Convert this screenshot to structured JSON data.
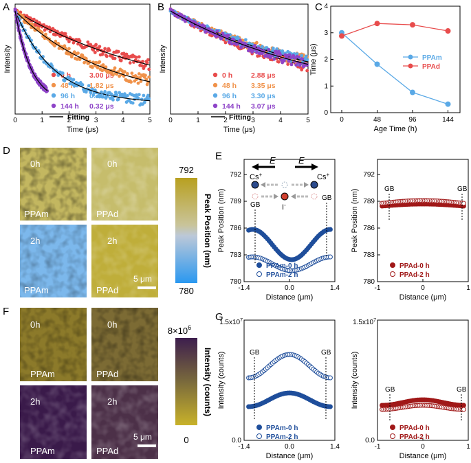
{
  "colors": {
    "red": "#e84c4c",
    "orange": "#f0924a",
    "blue": "#5aa9e6",
    "purple": "#8e44c8",
    "navy": "#1f4e9b",
    "darkred": "#a01818"
  },
  "panels": {
    "A": "A",
    "B": "B",
    "C": "C",
    "D": "D",
    "E": "E",
    "F": "F",
    "G": "G"
  },
  "chart_data": [
    {
      "id": "A",
      "type": "scatter",
      "xlabel": "Time (μs)",
      "ylabel": "Intensity",
      "xlim": [
        0,
        5
      ],
      "xticks": [
        "0",
        "1",
        "2",
        "3",
        "4",
        "5"
      ],
      "series": [
        {
          "name": "0 h",
          "lifetime": "3.00 μs",
          "color": "#e84c4c",
          "tau": 3.0
        },
        {
          "name": "48 h",
          "lifetime": "1.82 μs",
          "color": "#f0924a",
          "tau": 1.82
        },
        {
          "name": "96 h",
          "lifetime": "0.76 μs",
          "color": "#5aa9e6",
          "tau": 0.76
        },
        {
          "name": "144 h",
          "lifetime": "0.32 μs",
          "color": "#8e44c8",
          "tau": 0.32
        }
      ],
      "fit_label": "Fitting"
    },
    {
      "id": "B",
      "type": "scatter",
      "xlabel": "Time (μs)",
      "ylabel": "Intensity",
      "xlim": [
        0,
        5
      ],
      "xticks": [
        "0",
        "1",
        "2",
        "3",
        "4",
        "5"
      ],
      "series": [
        {
          "name": "0 h",
          "lifetime": "2.88 μs",
          "color": "#e84c4c",
          "tau": 2.88
        },
        {
          "name": "48 h",
          "lifetime": "3.35 μs",
          "color": "#f0924a",
          "tau": 3.35
        },
        {
          "name": "96 h",
          "lifetime": "3.30 μs",
          "color": "#5aa9e6",
          "tau": 3.3
        },
        {
          "name": "144 h",
          "lifetime": "3.07 μs",
          "color": "#8e44c8",
          "tau": 3.07
        }
      ],
      "fit_label": "Fitting"
    },
    {
      "id": "C",
      "type": "line",
      "xlabel": "Age Time (h)",
      "ylabel": "Time (μs)",
      "ylim": [
        0,
        4
      ],
      "categories": [
        "0",
        "48",
        "96",
        "144"
      ],
      "yticks": [
        "0",
        "1",
        "2",
        "3",
        "4"
      ],
      "series": [
        {
          "name": "PPAm",
          "color": "#5aa9e6",
          "values": [
            3.0,
            1.82,
            0.76,
            0.32
          ]
        },
        {
          "name": "PPAd",
          "color": "#e84c4c",
          "values": [
            2.88,
            3.35,
            3.3,
            3.07
          ]
        }
      ]
    },
    {
      "id": "E-left",
      "type": "scatter",
      "xlabel": "Distance (μm)",
      "ylabel": "Peak Position (nm)",
      "xlim": [
        -1.4,
        1.4
      ],
      "ylim": [
        780,
        792
      ],
      "xticks": [
        "-1.4",
        "0.0",
        "1.4"
      ],
      "yticks": [
        "780",
        "783",
        "786",
        "789",
        "792"
      ],
      "gb_label": "GB",
      "series": [
        {
          "name": "PPAm-0 h",
          "filled": true
        },
        {
          "name": "PPAm-2 h",
          "filled": false
        }
      ]
    },
    {
      "id": "E-right",
      "type": "scatter",
      "xlabel": "Distance (μm)",
      "ylabel": "Peak Position (nm)",
      "xlim": [
        -1,
        1
      ],
      "ylim": [
        780,
        792
      ],
      "xticks": [
        "-1",
        "0",
        "1"
      ],
      "yticks": [
        "780",
        "783",
        "786",
        "789",
        "792"
      ],
      "gb_label": "GB",
      "series": [
        {
          "name": "PPAd-0 h",
          "filled": true
        },
        {
          "name": "PPAd-2 h",
          "filled": false
        }
      ]
    },
    {
      "id": "G-left",
      "type": "scatter",
      "xlabel": "Distance (μm)",
      "ylabel": "Intensity (counts)",
      "xlim": [
        -1.4,
        1.4
      ],
      "xticks": [
        "-1.4",
        "0.0",
        "1.4"
      ],
      "ytick_bottom": "0.0",
      "ytick_top_base": "1.5x10",
      "ytick_top_exp": "7",
      "gb_label": "GB",
      "series": [
        {
          "name": "PPAm-0 h",
          "filled": true
        },
        {
          "name": "PPAm-2 h",
          "filled": false
        }
      ]
    },
    {
      "id": "G-right",
      "type": "scatter",
      "xlabel": "Distance (μm)",
      "ylabel": "Intensity (counts)",
      "xlim": [
        -1,
        1
      ],
      "xticks": [
        "-1",
        "0",
        "1"
      ],
      "ytick_bottom": "0.0",
      "ytick_top_base": "1.5x10",
      "ytick_top_exp": "7",
      "gb_label": "GB",
      "series": [
        {
          "name": "PPAd-0 h",
          "filled": true
        },
        {
          "name": "PPAd-2 h",
          "filled": false
        }
      ]
    }
  ],
  "diagramE": {
    "field": "E",
    "cation": "Cs",
    "cation_sup": "+",
    "anion": "I",
    "anion_sup": "-"
  },
  "maps": {
    "D": {
      "tiles": [
        {
          "time": "0h",
          "sample": "PPAm"
        },
        {
          "time": "0h",
          "sample": "PPAd"
        },
        {
          "time": "2h",
          "sample": "PPAm"
        },
        {
          "time": "2h",
          "sample": "PPAd"
        }
      ],
      "scale": "5 μm",
      "cbar_top": "792",
      "cbar_bottom": "780",
      "cbar_label": "Peak Position (nm)"
    },
    "F": {
      "tiles": [
        {
          "time": "0h",
          "sample": "PPAm"
        },
        {
          "time": "0h",
          "sample": "PPAd"
        },
        {
          "time": "2h",
          "sample": "PPAm"
        },
        {
          "time": "2h",
          "sample": "PPAd"
        }
      ],
      "scale": "5 μm",
      "cbar_top_base": "8×10",
      "cbar_top_exp": "6",
      "cbar_bottom": "0",
      "cbar_label": "Intensity (counts)"
    }
  }
}
